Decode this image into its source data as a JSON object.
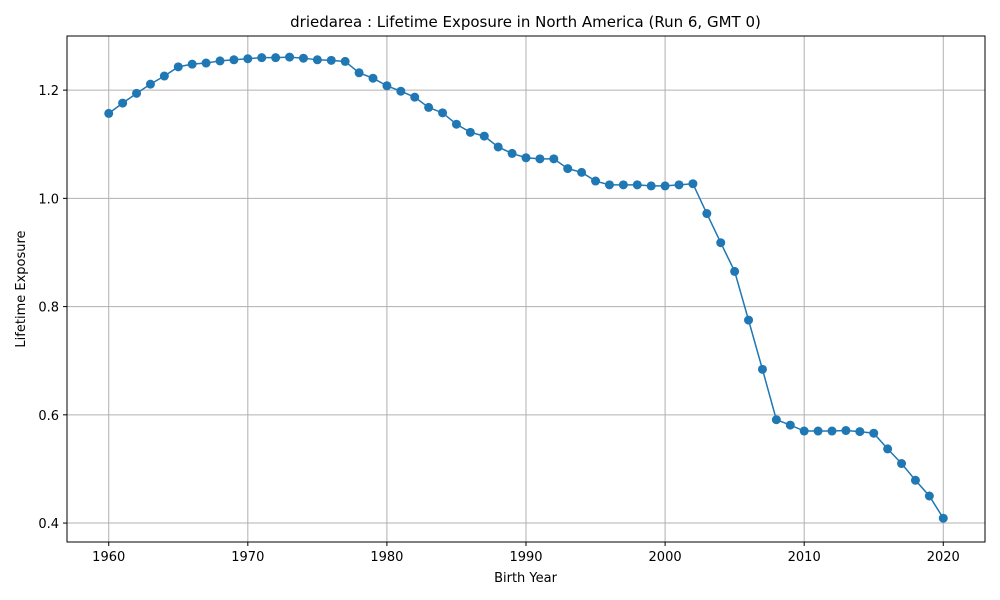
{
  "chart_data": {
    "type": "line",
    "title": "driedarea : Lifetime Exposure in North America (Run 6, GMT 0)",
    "xlabel": "Birth Year",
    "ylabel": "Lifetime Exposure",
    "xlim": [
      1957,
      2023
    ],
    "ylim": [
      0.365,
      1.3
    ],
    "xticks": [
      1960,
      1970,
      1980,
      1990,
      2000,
      2010,
      2020
    ],
    "yticks": [
      0.4,
      0.6,
      0.8,
      1.0,
      1.2
    ],
    "ytick_labels": [
      "0.4",
      "0.6",
      "0.8",
      "1.0",
      "1.2"
    ],
    "grid": true,
    "series": [
      {
        "color": "#1f77b4",
        "marker": "circle",
        "x": [
          1960,
          1961,
          1962,
          1963,
          1964,
          1965,
          1966,
          1967,
          1968,
          1969,
          1970,
          1971,
          1972,
          1973,
          1974,
          1975,
          1976,
          1977,
          1978,
          1979,
          1980,
          1981,
          1982,
          1983,
          1984,
          1985,
          1986,
          1987,
          1988,
          1989,
          1990,
          1991,
          1992,
          1993,
          1994,
          1995,
          1996,
          1997,
          1998,
          1999,
          2000,
          2001,
          2002,
          2003,
          2004,
          2005,
          2006,
          2007,
          2008,
          2009,
          2010,
          2011,
          2012,
          2013,
          2014,
          2015,
          2016,
          2017,
          2018,
          2019,
          2020
        ],
        "y": [
          1.157,
          1.176,
          1.194,
          1.211,
          1.226,
          1.243,
          1.248,
          1.25,
          1.254,
          1.256,
          1.258,
          1.26,
          1.26,
          1.261,
          1.259,
          1.256,
          1.255,
          1.253,
          1.232,
          1.222,
          1.208,
          1.198,
          1.187,
          1.168,
          1.158,
          1.137,
          1.122,
          1.115,
          1.095,
          1.083,
          1.075,
          1.073,
          1.073,
          1.055,
          1.048,
          1.032,
          1.025,
          1.025,
          1.025,
          1.023,
          1.023,
          1.025,
          1.027,
          0.972,
          0.918,
          0.865,
          0.775,
          0.684,
          0.591,
          0.581,
          0.57,
          0.57,
          0.57,
          0.571,
          0.569,
          0.566,
          0.537,
          0.51,
          0.479,
          0.45,
          0.409
        ]
      }
    ]
  }
}
